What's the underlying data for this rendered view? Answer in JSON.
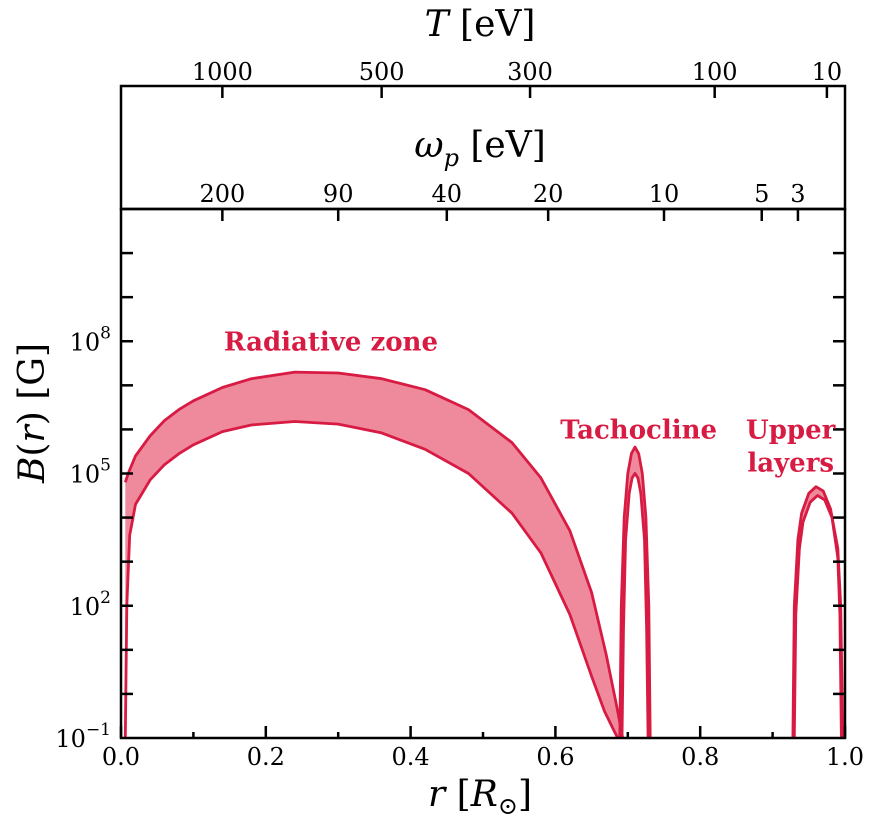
{
  "chart_data": {
    "type": "area",
    "xlabel": "r [R⊙]",
    "ylabel": "B(r) [G]",
    "xlim": [
      0.0,
      1.0
    ],
    "ylim_log10": [
      -1,
      11
    ],
    "yscale": "log",
    "x_ticks": [
      "0.0",
      "0.2",
      "0.4",
      "0.6",
      "0.8",
      "1.0"
    ],
    "y_ticks": [
      {
        "base": "10",
        "exp": "−1",
        "log10": -1
      },
      {
        "base": "10",
        "exp": "2",
        "log10": 2
      },
      {
        "base": "10",
        "exp": "5",
        "log10": 5
      },
      {
        "base": "10",
        "exp": "8",
        "log10": 8
      }
    ],
    "top_axis_T": {
      "label": "T [eV]",
      "ticks": [
        {
          "label": "1000",
          "r": 0.14
        },
        {
          "label": "500",
          "r": 0.36
        },
        {
          "label": "300",
          "r": 0.565
        },
        {
          "label": "100",
          "r": 0.82
        },
        {
          "label": "10",
          "r": 0.975
        }
      ]
    },
    "top_axis_wp": {
      "label": "ωp [eV]",
      "ticks": [
        {
          "label": "200",
          "r": 0.14
        },
        {
          "label": "90",
          "r": 0.3
        },
        {
          "label": "40",
          "r": 0.45
        },
        {
          "label": "20",
          "r": 0.59
        },
        {
          "label": "10",
          "r": 0.75
        },
        {
          "label": "5",
          "r": 0.885
        },
        {
          "label": "3",
          "r": 0.935
        }
      ]
    },
    "series": [
      {
        "upper": {
          "x": [
            0.006,
            0.01,
            0.02,
            0.04,
            0.06,
            0.08,
            0.1,
            0.14,
            0.18,
            0.24,
            0.3,
            0.36,
            0.42,
            0.48,
            0.54,
            0.58,
            0.62,
            0.65,
            0.67,
            0.685,
            0.693
          ],
          "y": [
            4.8,
            5.0,
            5.4,
            5.85,
            6.2,
            6.45,
            6.65,
            6.95,
            7.15,
            7.3,
            7.28,
            7.15,
            6.9,
            6.45,
            5.7,
            4.9,
            3.7,
            2.3,
            0.9,
            -0.3,
            -1.0
          ]
        },
        "lower": {
          "x": [
            0.006,
            0.008,
            0.012,
            0.02,
            0.04,
            0.06,
            0.08,
            0.1,
            0.14,
            0.18,
            0.24,
            0.3,
            0.36,
            0.42,
            0.48,
            0.54,
            0.58,
            0.62,
            0.65,
            0.668,
            0.68,
            0.686
          ],
          "y": [
            -1.0,
            2.0,
            3.6,
            4.3,
            4.85,
            5.2,
            5.45,
            5.65,
            5.95,
            6.1,
            6.18,
            6.12,
            5.92,
            5.55,
            5.0,
            4.1,
            3.2,
            1.8,
            0.4,
            -0.4,
            -0.8,
            -1.0
          ]
        }
      },
      {
        "upper": {
          "x": [
            0.689,
            0.691,
            0.695,
            0.7,
            0.705,
            0.71,
            0.715,
            0.72,
            0.725,
            0.729,
            0.731
          ],
          "y": [
            -1.0,
            2.0,
            4.0,
            5.0,
            5.45,
            5.6,
            5.45,
            5.0,
            4.0,
            2.0,
            -1.0
          ]
        },
        "lower": {
          "x": [
            0.692,
            0.694,
            0.697,
            0.702,
            0.706,
            0.71,
            0.714,
            0.718,
            0.723,
            0.726,
            0.728
          ],
          "y": [
            -1.0,
            1.5,
            3.5,
            4.55,
            4.9,
            5.0,
            4.9,
            4.55,
            3.5,
            1.5,
            -1.0
          ]
        }
      },
      {
        "upper": {
          "x": [
            0.928,
            0.93,
            0.935,
            0.94,
            0.95,
            0.96,
            0.97,
            0.98,
            0.99,
            0.994,
            0.997
          ],
          "y": [
            -1.0,
            2.0,
            3.5,
            4.1,
            4.55,
            4.7,
            4.6,
            4.2,
            3.3,
            2.0,
            -1.0
          ]
        },
        "lower": {
          "x": [
            0.93,
            0.932,
            0.937,
            0.942,
            0.952,
            0.962,
            0.972,
            0.982,
            0.99,
            0.993,
            0.995
          ],
          "y": [
            -1.0,
            1.8,
            3.3,
            3.9,
            4.35,
            4.5,
            4.4,
            4.0,
            3.1,
            1.8,
            -1.0
          ]
        }
      }
    ],
    "annotations": [
      {
        "text": "Radiative zone",
        "x": 0.29,
        "y_log10": 8.0
      },
      {
        "text": "Tachocline",
        "x": 0.715,
        "y_log10": 6.0
      },
      {
        "text": "Upper",
        "x": 0.925,
        "y_log10": 6.0
      },
      {
        "text": "layers",
        "x": 0.925,
        "y_log10": 5.25
      }
    ],
    "colors": {
      "line": "#d81b43",
      "fill": "#ee8a9c"
    }
  }
}
